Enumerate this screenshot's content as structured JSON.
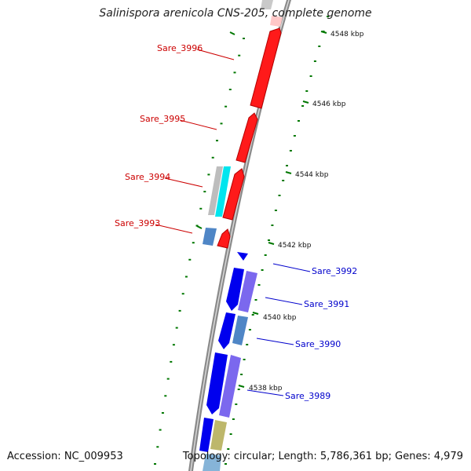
{
  "title": "Salinispora arenicola CNS-205, complete genome",
  "accession": "Accession: NC_009953",
  "topology": "Topology: circular; Length: 5,786,361 bp; Genes: 4,979",
  "colors": {
    "forward_strand": "#ff0000",
    "reverse_strand": "#0000ff",
    "label_forward": "#cc0000",
    "label_reverse": "#0000cc",
    "ticks": "#007700",
    "backbone": "#7a7a7a",
    "cyan_feature": "#00e5ee",
    "grey_feature": "#bdbdbd",
    "steel_feature": "#4f86c6",
    "purple_feature": "#7b68ee",
    "khaki_feature": "#bdb76b"
  },
  "ticks": [
    {
      "label": "4548 kbp"
    },
    {
      "label": "4546 kbp"
    },
    {
      "label": "4544 kbp"
    },
    {
      "label": "4542 kbp"
    },
    {
      "label": "4540 kbp"
    },
    {
      "label": "4538 kbp"
    }
  ],
  "gene_labels": [
    {
      "name": "Sare_3996",
      "strand": "forward"
    },
    {
      "name": "Sare_3995",
      "strand": "forward"
    },
    {
      "name": "Sare_3994",
      "strand": "forward"
    },
    {
      "name": "Sare_3993",
      "strand": "forward"
    },
    {
      "name": "Sare_3992",
      "strand": "reverse"
    },
    {
      "name": "Sare_3991",
      "strand": "reverse"
    },
    {
      "name": "Sare_3990",
      "strand": "reverse"
    },
    {
      "name": "Sare_3989",
      "strand": "reverse"
    }
  ]
}
